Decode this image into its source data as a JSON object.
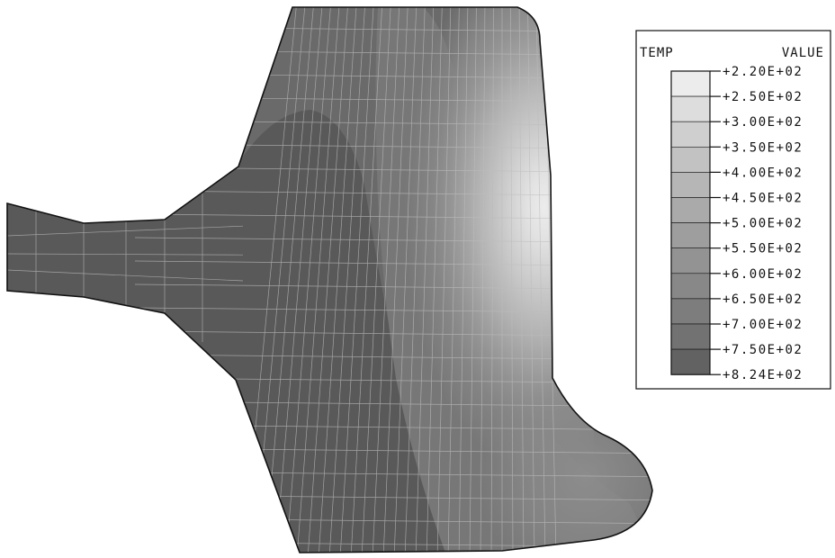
{
  "legend": {
    "header_left": "TEMP",
    "header_right": "VALUE",
    "values": [
      "+2.20E+02",
      "+2.50E+02",
      "+3.00E+02",
      "+3.50E+02",
      "+4.00E+02",
      "+4.50E+02",
      "+5.00E+02",
      "+5.50E+02",
      "+6.00E+02",
      "+6.50E+02",
      "+7.00E+02",
      "+7.50E+02",
      "+8.24E+02"
    ],
    "band_colors": [
      "#ececec",
      "#dddddd",
      "#cfcfcf",
      "#c2c2c2",
      "#b6b6b6",
      "#aaaaaa",
      "#9e9e9e",
      "#939393",
      "#888888",
      "#7d7d7d",
      "#727272",
      "#626262"
    ]
  },
  "contour_colors": {
    "hot": "#595959",
    "warm": "#6a6a6a",
    "mid": "#777777",
    "edge": "#111111",
    "mesh": "#bdbdbd"
  }
}
